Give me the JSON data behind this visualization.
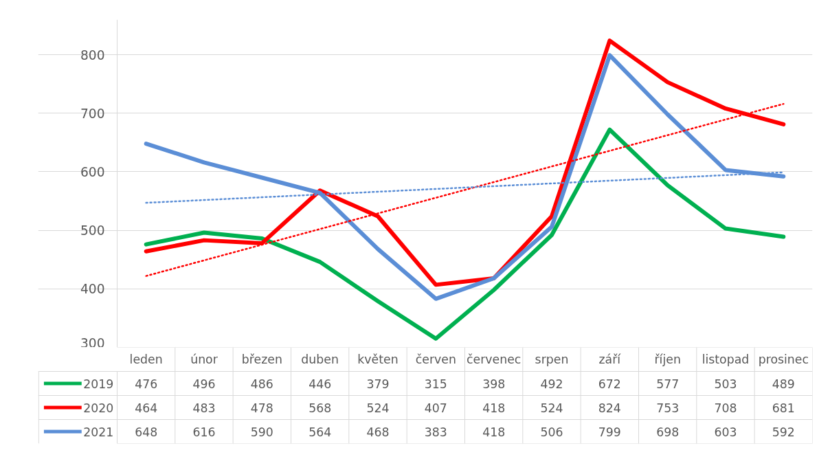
{
  "chart_data": {
    "type": "line",
    "categories": [
      "leden",
      "únor",
      "březen",
      "duben",
      "květen",
      "červen",
      "červenec",
      "srpen",
      "září",
      "říjen",
      "listopad",
      "prosinec"
    ],
    "series": [
      {
        "name": "2019",
        "color": "#00b050",
        "values": [
          476,
          496,
          486,
          446,
          379,
          315,
          398,
          492,
          672,
          577,
          503,
          489
        ],
        "value_labels": [
          "476",
          "496",
          "486",
          "446",
          "379",
          "315",
          "398",
          "492",
          "672",
          "577",
          "503",
          "489"
        ]
      },
      {
        "name": "2020",
        "color": "#ff0000",
        "values": [
          464,
          483,
          478,
          568,
          524,
          407,
          418,
          524,
          824,
          753,
          708,
          681
        ],
        "value_labels": [
          "464",
          "483",
          "478",
          "568",
          "524",
          "407",
          "418",
          "524",
          "824",
          "753",
          "708",
          "681"
        ]
      },
      {
        "name": "2021",
        "color": "#5b8ed6",
        "values": [
          648,
          616,
          590,
          564,
          468,
          383,
          418,
          506,
          799,
          698,
          603,
          592
        ],
        "value_labels": [
          "648",
          "616",
          "590",
          "564",
          "468",
          "383",
          "418",
          "506",
          "799",
          "698",
          "603",
          "592"
        ]
      },
      {
        "color": "#ff0000",
        "x": [
          "leden",
          "prosinec"
        ],
        "values": [
          422,
          716
        ],
        "line_style": "dotted"
      },
      {
        "color": "#5b8ed6",
        "x": [
          "leden",
          "prosinec"
        ],
        "values": [
          547,
          599
        ],
        "line_style": "dotted"
      }
    ],
    "ylim": [
      300,
      860
    ],
    "yticks": [
      300,
      400,
      500,
      600,
      700,
      800
    ],
    "grid": "y",
    "legend": "bottom",
    "tick_labels": "y",
    "line_style": "solid",
    "marker": "none"
  }
}
